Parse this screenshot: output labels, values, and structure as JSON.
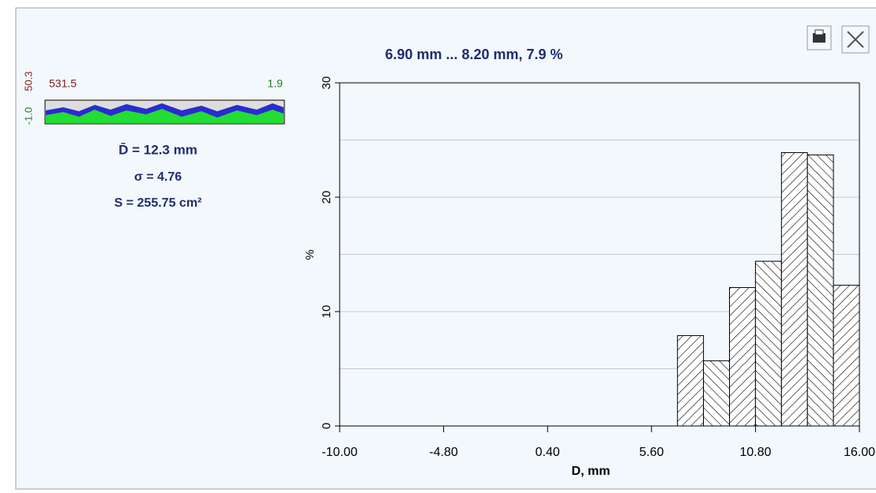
{
  "chart_data": {
    "type": "histogram",
    "title": "6.90 mm ... 8.20 mm, 7.9 %",
    "x_label": "D, mm",
    "y_label": "%",
    "bins": [
      6.9,
      8.2,
      9.5,
      10.8,
      12.1,
      13.4,
      14.7,
      16.0
    ],
    "values": [
      7.9,
      5.7,
      12.1,
      14.4,
      23.9,
      23.7,
      12.3
    ],
    "xlim": [
      -10,
      16
    ],
    "xticks": [
      {
        "value": -10,
        "label": "-10.00"
      },
      {
        "value": -4.8,
        "label": "-4.80"
      },
      {
        "value": 0.4,
        "label": "0.40"
      },
      {
        "value": 5.6,
        "label": "5.60"
      },
      {
        "value": 10.8,
        "label": "10.80"
      },
      {
        "value": 16,
        "label": "16.00"
      }
    ],
    "ylim": [
      0,
      30
    ],
    "yticks": [
      0,
      10,
      20,
      30
    ],
    "y_minor_ticks": [
      5,
      15,
      25
    ],
    "grid": true,
    "color": "#000000"
  },
  "summary": {
    "range_left": "531.5",
    "range_right": "1.9",
    "scale_top": "50.3",
    "scale_bottom": "-1.0",
    "mean": "D̄ = 12.3 mm",
    "sigma": "σ = 4.76",
    "area": "S = 255.75 cm²"
  }
}
